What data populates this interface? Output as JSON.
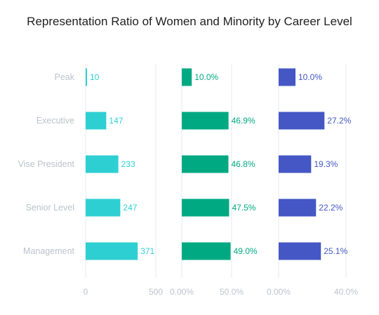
{
  "chart_data": {
    "title": "Representation Ratio of Women and Minority by Career Level",
    "categories": [
      "Peak",
      "Executive",
      "Vise President",
      "Senior Level",
      "Management"
    ],
    "panels": [
      {
        "type": "bar",
        "orientation": "horizontal",
        "values": [
          10,
          147,
          233,
          247,
          371
        ],
        "value_labels": [
          "10",
          "147",
          "233",
          "247",
          "371"
        ],
        "xlim": [
          0,
          500
        ],
        "ticks": [
          "0",
          "500"
        ],
        "color": "#2ecfd3"
      },
      {
        "type": "bar",
        "orientation": "horizontal",
        "values": [
          10.0,
          46.9,
          46.8,
          47.5,
          49.0
        ],
        "value_labels": [
          "10.0%",
          "46.9%",
          "46.8%",
          "47.5%",
          "49.0%"
        ],
        "xlim": [
          0,
          50
        ],
        "ticks": [
          "0.00%",
          "50.0%"
        ],
        "color": "#00a982"
      },
      {
        "type": "bar",
        "orientation": "horizontal",
        "values": [
          10.0,
          27.2,
          19.3,
          22.2,
          25.1
        ],
        "value_labels": [
          "10.0%",
          "27.2%",
          "19.3%",
          "22.2%",
          "25.1%"
        ],
        "xlim": [
          0,
          40
        ],
        "ticks": [
          "0.00%",
          "40.0%"
        ],
        "color": "#4457c4"
      }
    ]
  }
}
